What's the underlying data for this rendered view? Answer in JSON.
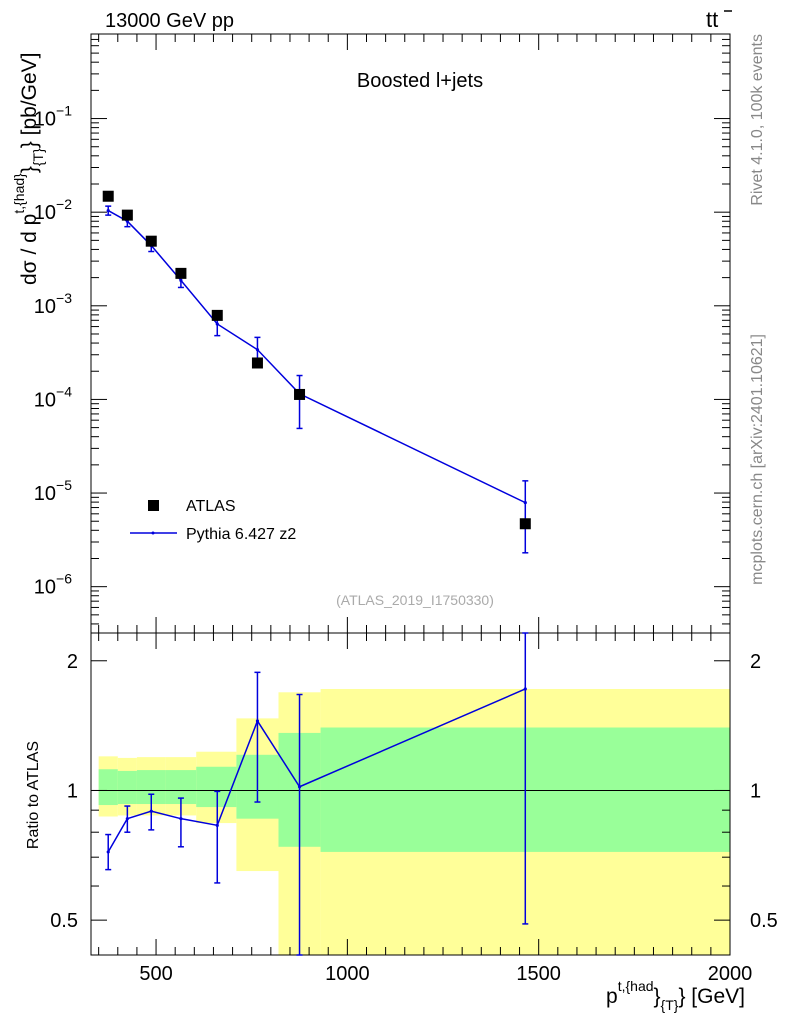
{
  "header": {
    "left_label": "13000 GeV pp",
    "right_label": "tt̄",
    "right_label_base": "t",
    "right_label_bar": "t"
  },
  "side_labels": {
    "rivet": "Rivet 4.1.0,  100k events",
    "mcplots": "mcplots.cern.ch [arXiv:2401.10621]"
  },
  "chart_data": [
    {
      "type": "scatter",
      "panel": "main",
      "title": "Boosted l+jets",
      "watermark": "(ATLAS_2019_I1750330)",
      "yscale": "log",
      "xlim": [
        330,
        2000
      ],
      "ylim": [
        3.2e-07,
        0.8
      ],
      "ylabel": {
        "main": "dσ / d p",
        "sup": "t,{had}",
        "sub": "{T}",
        "unit": "} [pb/GeV]",
        "brace": "}"
      },
      "yticks": [
        {
          "value": 1e-06,
          "base": "10",
          "exp": "−6"
        },
        {
          "value": 1e-05,
          "base": "10",
          "exp": "−5"
        },
        {
          "value": 0.0001,
          "base": "10",
          "exp": "−4"
        },
        {
          "value": 0.001,
          "base": "10",
          "exp": "−3"
        },
        {
          "value": 0.01,
          "base": "10",
          "exp": "−2"
        },
        {
          "value": 0.1,
          "base": "10",
          "exp": "−1"
        }
      ],
      "series": [
        {
          "name": "ATLAS",
          "style": "markers",
          "color": "#000000",
          "x": [
            375,
            425,
            487.5,
            565,
            660,
            765,
            875,
            1465
          ],
          "y": [
            0.0148,
            0.0093,
            0.0049,
            0.00222,
            0.00079,
            0.000245,
            0.000113,
            4.7e-06
          ]
        },
        {
          "name": "Pythia 6.427 z2",
          "style": "line-errorbars",
          "color": "#0000dd",
          "x": [
            375,
            425,
            487.5,
            565,
            660,
            765,
            875,
            1465
          ],
          "y": [
            0.0104,
            0.008,
            0.0044,
            0.00187,
            0.00064,
            0.00034,
            0.000115,
            7.9e-06
          ],
          "err_low": [
            0.0093,
            0.007,
            0.0038,
            0.00157,
            0.00048,
            0.00025,
            4.9e-05,
            2.3e-06
          ],
          "err_high": [
            0.0116,
            0.009,
            0.005,
            0.00218,
            0.00081,
            0.00046,
            0.00018,
            1.35e-05
          ]
        }
      ],
      "legend": {
        "position": "bottom-left",
        "entries": [
          "ATLAS",
          "Pythia 6.427 z2"
        ]
      }
    },
    {
      "type": "line",
      "panel": "ratio",
      "ylabel": "Ratio to ATLAS",
      "xlabel": {
        "main": "p",
        "sup": "t,{had",
        "sub": "{T}",
        "unit": "} [GeV]",
        "brace": "}"
      },
      "yscale": "log",
      "xlim": [
        330,
        2000
      ],
      "ylim": [
        0.415,
        2.32
      ],
      "xticks": [
        500,
        1000,
        1500,
        2000
      ],
      "xtick_labels": [
        "500",
        "1000",
        "1500",
        "2000"
      ],
      "yticks": [
        0.5,
        1,
        2
      ],
      "ytick_labels": [
        "0.5",
        "1",
        "2"
      ],
      "reference_line": 1,
      "bands": {
        "inner_color": "#99ff99",
        "outer_color": "#ffff99",
        "bins": [
          {
            "x0": 350,
            "x1": 400,
            "inner": [
              0.925,
              1.12
            ],
            "outer": [
              0.87,
              1.2
            ]
          },
          {
            "x0": 400,
            "x1": 450,
            "inner": [
              0.93,
              1.11
            ],
            "outer": [
              0.875,
              1.19
            ]
          },
          {
            "x0": 450,
            "x1": 525,
            "inner": [
              0.93,
              1.115
            ],
            "outer": [
              0.875,
              1.195
            ]
          },
          {
            "x0": 525,
            "x1": 605,
            "inner": [
              0.93,
              1.115
            ],
            "outer": [
              0.875,
              1.195
            ]
          },
          {
            "x0": 605,
            "x1": 710,
            "inner": [
              0.915,
              1.135
            ],
            "outer": [
              0.84,
              1.23
            ]
          },
          {
            "x0": 710,
            "x1": 820,
            "inner": [
              0.86,
              1.21
            ],
            "outer": [
              0.65,
              1.47
            ]
          },
          {
            "x0": 820,
            "x1": 930,
            "inner": [
              0.74,
              1.36
            ],
            "outer": [
              0.37,
              1.69
            ]
          },
          {
            "x0": 930,
            "x1": 2000,
            "inner": [
              0.72,
              1.4
            ],
            "outer": [
              0.37,
              1.72
            ]
          }
        ]
      },
      "series": [
        {
          "name": "Pythia 6.427 z2",
          "color": "#0000dd",
          "x": [
            375,
            425,
            487.5,
            565,
            660,
            765,
            875,
            1465
          ],
          "y": [
            0.72,
            0.86,
            0.895,
            0.86,
            0.83,
            1.45,
            1.02,
            1.72
          ],
          "err_low": [
            0.655,
            0.8,
            0.81,
            0.74,
            0.61,
            0.94,
            0.38,
            0.49
          ],
          "err_high": [
            0.79,
            0.92,
            0.98,
            0.96,
            0.995,
            1.88,
            1.67,
            2.32
          ]
        }
      ]
    }
  ]
}
